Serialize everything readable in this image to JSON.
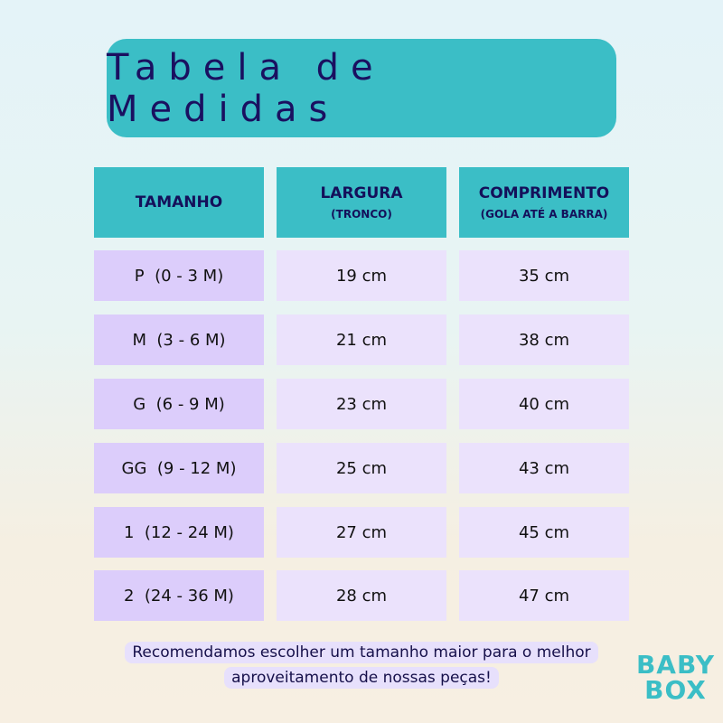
{
  "title": "Tabela de Medidas",
  "headers": [
    {
      "main": "TAMANHO",
      "sub": ""
    },
    {
      "main": "LARGURA",
      "sub": "(TRONCO)"
    },
    {
      "main": "COMPRIMENTO",
      "sub": "(GOLA ATÉ A BARRA)"
    }
  ],
  "rows": [
    [
      "P  (0 - 3 M)",
      "19 cm",
      "35 cm"
    ],
    [
      "M  (3 - 6 M)",
      "21 cm",
      "38 cm"
    ],
    [
      "G  (6 - 9 M)",
      "23 cm",
      "40 cm"
    ],
    [
      "GG  (9 - 12 M)",
      "25 cm",
      "43 cm"
    ],
    [
      "1  (12 - 24 M)",
      "27 cm",
      "45 cm"
    ],
    [
      "2  (24 - 36 M)",
      "28 cm",
      "47 cm"
    ]
  ],
  "note": {
    "line1": "Recomendamos escolher um tamanho maior para o melhor",
    "line2": "aproveitamento de nossas peças!"
  },
  "logo": {
    "line1": "BABY",
    "line2": "BOX"
  },
  "colors": {
    "accent": "#3bbec6",
    "size_cell": "#dccdfb",
    "value_cell": "#ebe2fc",
    "text": "#16104a"
  }
}
